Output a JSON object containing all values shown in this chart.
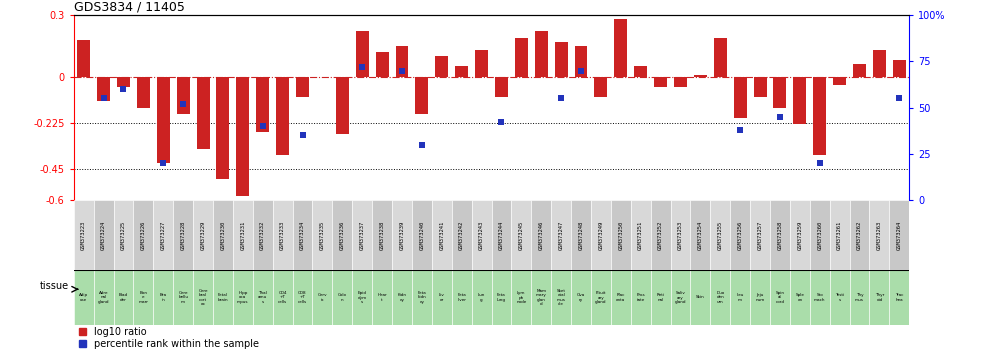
{
  "title": "GDS3834 / 11405",
  "gsm_ids": [
    "GSM373223",
    "GSM373224",
    "GSM373225",
    "GSM373226",
    "GSM373227",
    "GSM373228",
    "GSM373229",
    "GSM373230",
    "GSM373231",
    "GSM373232",
    "GSM373233",
    "GSM373234",
    "GSM373235",
    "GSM373236",
    "GSM373237",
    "GSM373238",
    "GSM373239",
    "GSM373240",
    "GSM373241",
    "GSM373242",
    "GSM373243",
    "GSM373244",
    "GSM373245",
    "GSM373246",
    "GSM373247",
    "GSM373248",
    "GSM373249",
    "GSM373250",
    "GSM373251",
    "GSM373252",
    "GSM373253",
    "GSM373254",
    "GSM373255",
    "GSM373256",
    "GSM373257",
    "GSM373258",
    "GSM373259",
    "GSM373260",
    "GSM373261",
    "GSM373262",
    "GSM373263",
    "GSM373264"
  ],
  "tissues": [
    "Adip\nose",
    "Adre\nnal\ngland",
    "Blad\nder",
    "Bon\ne\nmarr",
    "Bra\nin",
    "Cere\nbellu\nm",
    "Cere\nbral\ncort\nex",
    "Fetal\nbrain",
    "Hipp\noca\nmpus",
    "Thal\namu\ns",
    "CD4\n+T\ncells",
    "CD8\n+T\ncells",
    "Cerv\nix",
    "Colo\nn",
    "Epid\ndym\ns",
    "Hear\nt",
    "Kidn\ney",
    "Feta\nkidn\ney",
    "Liv\ner",
    "Feta\nliver",
    "Lun\ng",
    "Feta\nlung",
    "Lym\nph\nnode",
    "Mam\nmary\nglan\nd",
    "Sket\netal\nmus\ncle",
    "Ova\nry",
    "Pituit\nary\ngland",
    "Plac\nenta",
    "Pros\ntate",
    "Reti\nnal",
    "Saliv\nary\ngland",
    "Skin",
    "Duo\nden\num",
    "Ileu\nm",
    "Jeju\nnum",
    "Spin\nal\ncord",
    "Sple\nen",
    "Sto\nmach",
    "Testi\ns",
    "Thy\nmus",
    "Thyr\noid",
    "Trac\nhea"
  ],
  "log10_ratio": [
    0.18,
    -0.12,
    -0.05,
    -0.15,
    -0.42,
    -0.18,
    -0.35,
    -0.5,
    -0.58,
    -0.27,
    -0.38,
    -0.1,
    0.0,
    -0.28,
    0.22,
    0.12,
    0.15,
    -0.18,
    0.1,
    0.05,
    0.13,
    -0.1,
    0.19,
    0.22,
    0.17,
    0.15,
    -0.1,
    0.28,
    0.05,
    -0.05,
    -0.05,
    0.01,
    0.19,
    -0.2,
    -0.1,
    -0.15,
    -0.23,
    -0.38,
    -0.04,
    0.06,
    0.13,
    0.08
  ],
  "percentile_rank": [
    null,
    55,
    60,
    null,
    20,
    52,
    null,
    null,
    null,
    40,
    null,
    35,
    null,
    null,
    72,
    null,
    70,
    30,
    null,
    null,
    null,
    42,
    null,
    null,
    55,
    70,
    null,
    null,
    null,
    null,
    null,
    null,
    null,
    38,
    null,
    45,
    null,
    20,
    null,
    null,
    null,
    55
  ],
  "bar_color": "#cc2222",
  "point_color": "#2233bb",
  "zeroline_color": "#cc2222",
  "dotted_line_color": "#000000",
  "bg_chart": "#ffffff",
  "bg_gsm": "#d0d0d0",
  "bg_tissue": "#aaddaa",
  "ylim_left": [
    -0.6,
    0.3
  ],
  "ylim_right": [
    0,
    100
  ],
  "yticks_left": [
    -0.6,
    -0.45,
    -0.225,
    0.0,
    0.3
  ],
  "ytick_labels_left": [
    "-0.6",
    "-0.45",
    "-0.225",
    "0",
    "0.3"
  ],
  "yticks_right": [
    0,
    25,
    50,
    75,
    100
  ],
  "ytick_labels_right": [
    "0",
    "25",
    "50",
    "75",
    "100%"
  ],
  "hlines": [
    -0.225,
    -0.45
  ],
  "legend_log10": "log10 ratio",
  "legend_pct": "percentile rank within the sample",
  "tissue_label": "tissue"
}
